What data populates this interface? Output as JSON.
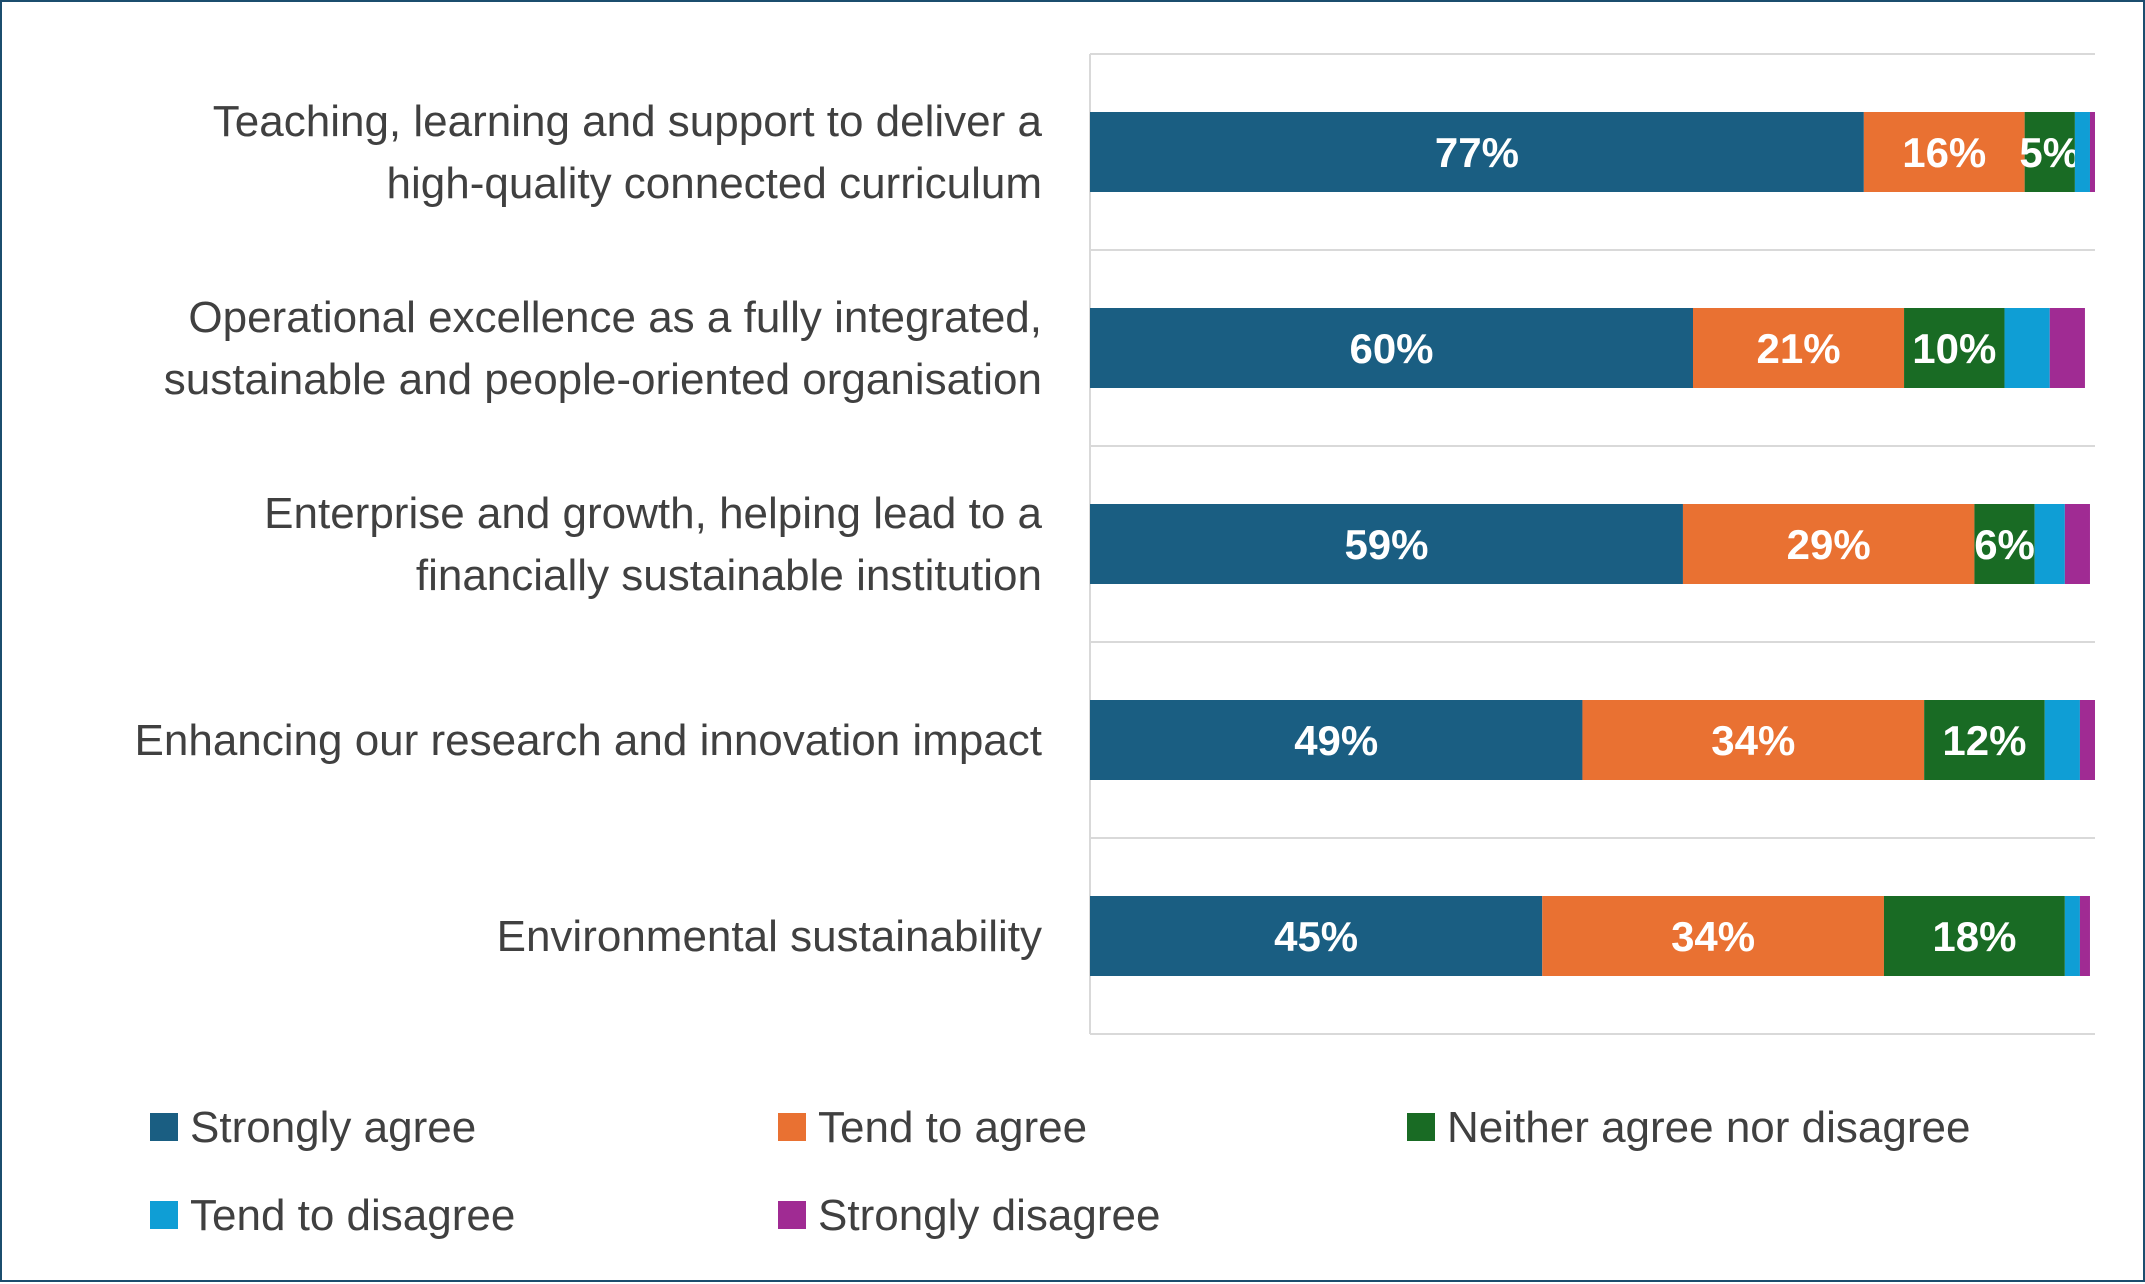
{
  "chart_data": {
    "type": "bar",
    "orientation": "horizontal",
    "stacked": true,
    "title": "",
    "xlabel": "",
    "ylabel": "",
    "xlim": [
      0,
      100
    ],
    "grid": true,
    "legend_position": "bottom",
    "categories": [
      [
        "Teaching, learning and support to deliver a",
        "high-quality connected curriculum"
      ],
      [
        "Operational excellence as a fully integrated,",
        "sustainable and people-oriented organisation"
      ],
      [
        "Enterprise and growth, helping lead to a",
        "financially sustainable institution"
      ],
      [
        "Enhancing our research and innovation impact"
      ],
      [
        "Environmental sustainability"
      ]
    ],
    "series": [
      {
        "name": "Strongly agree",
        "color": "#1a5e82",
        "values": [
          77,
          60,
          59,
          49,
          45
        ],
        "labels": [
          "77%",
          "60%",
          "59%",
          "49%",
          "45%"
        ]
      },
      {
        "name": "Tend to agree",
        "color": "#e97132",
        "values": [
          16,
          21,
          29,
          34,
          34
        ],
        "labels": [
          "16%",
          "21%",
          "29%",
          "34%",
          "34%"
        ]
      },
      {
        "name": "Neither agree nor disagree",
        "color": "#196b24",
        "values": [
          5,
          10,
          6,
          12,
          18
        ],
        "labels": [
          "5%",
          "10%",
          "6%",
          "12%",
          "18%"
        ]
      },
      {
        "name": "Tend to disagree",
        "color": "#0f9ed5",
        "values": [
          1.5,
          4.5,
          3,
          3.5,
          1.5
        ],
        "labels": [
          "",
          "",
          "",
          "",
          ""
        ]
      },
      {
        "name": "Strongly disagree",
        "color": "#a02b93",
        "values": [
          0.5,
          3.5,
          2.5,
          1.5,
          1
        ],
        "labels": [
          "",
          "",
          "",
          "",
          ""
        ]
      }
    ]
  }
}
